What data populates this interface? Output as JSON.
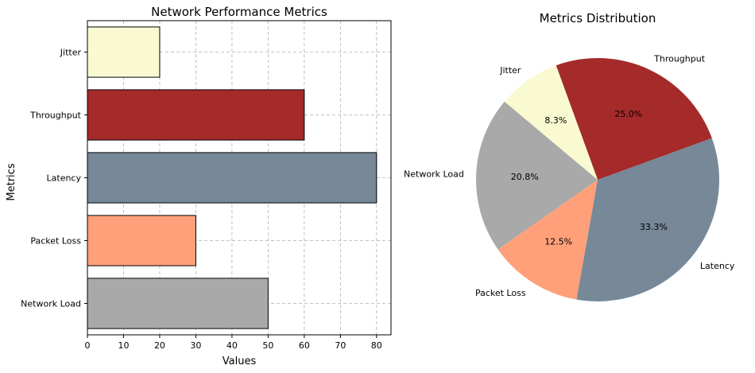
{
  "chart_data": [
    {
      "type": "bar",
      "orientation": "horizontal",
      "title": "Network Performance Metrics",
      "xlabel": "Values",
      "ylabel": "Metrics",
      "categories": [
        "Network Load",
        "Packet Loss",
        "Latency",
        "Throughput",
        "Jitter"
      ],
      "values": [
        50,
        30,
        80,
        60,
        20
      ],
      "colors": [
        "#a9a9a9",
        "#ffa07a",
        "#778899",
        "#a52a2a",
        "#fafad2"
      ],
      "xlim": [
        0,
        84
      ],
      "xticks": [
        0,
        10,
        20,
        30,
        40,
        50,
        60,
        70,
        80
      ],
      "grid": true
    },
    {
      "type": "pie",
      "title": "Metrics Distribution",
      "labels": [
        "Network Load",
        "Packet Loss",
        "Latency",
        "Throughput",
        "Jitter"
      ],
      "values": [
        50,
        30,
        80,
        60,
        20
      ],
      "percent_labels": [
        "20.8%",
        "12.5%",
        "33.3%",
        "25.0%",
        "8.3%"
      ],
      "colors": [
        "#a9a9a9",
        "#ffa07a",
        "#778899",
        "#a52a2a",
        "#fafad2"
      ],
      "start_angle": 140
    }
  ]
}
